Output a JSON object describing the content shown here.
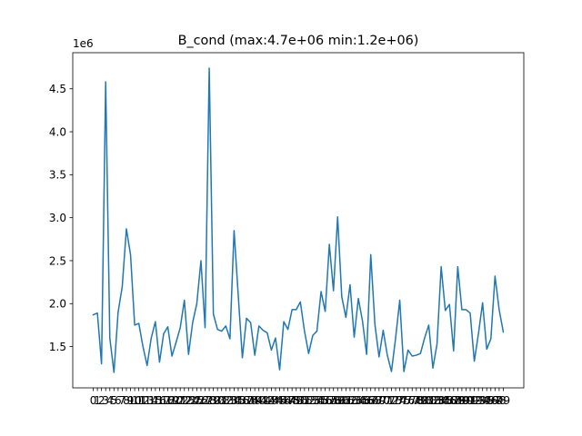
{
  "chart_data": {
    "type": "line",
    "title": "B_cond (max:4.7e+06 min:1.2e+06)",
    "xlabel": "",
    "ylabel": "",
    "y_offset_label": "1e6",
    "grid": false,
    "legend": "none",
    "xlim": [
      -4.95,
      103.95
    ],
    "ylim": [
      1.02,
      4.92
    ],
    "x_ticks": [
      0,
      1,
      2,
      3,
      4,
      5,
      6,
      7,
      8,
      9,
      10,
      11,
      12,
      13,
      14,
      15,
      16,
      17,
      18,
      19,
      20,
      21,
      22,
      23,
      24,
      25,
      26,
      27,
      28,
      29,
      30,
      31,
      32,
      33,
      34,
      35,
      36,
      37,
      38,
      39,
      40,
      41,
      42,
      43,
      44,
      45,
      46,
      47,
      48,
      49,
      50,
      51,
      52,
      53,
      54,
      55,
      56,
      57,
      58,
      59,
      60,
      61,
      62,
      63,
      64,
      65,
      66,
      67,
      68,
      69,
      70,
      71,
      72,
      73,
      74,
      75,
      76,
      77,
      78,
      79,
      80,
      81,
      82,
      83,
      84,
      85,
      86,
      87,
      88,
      89,
      90,
      91,
      92,
      93,
      94,
      95,
      96,
      97,
      98,
      99
    ],
    "y_ticks": [
      1.5,
      2.0,
      2.5,
      3.0,
      3.5,
      4.0,
      4.5
    ],
    "y_tick_labels": [
      "1.5",
      "2.0",
      "2.5",
      "3.0",
      "3.5",
      "4.0",
      "4.5"
    ],
    "series": [
      {
        "color": "#1f77b4",
        "x": [
          0,
          1,
          2,
          3,
          4,
          5,
          6,
          7,
          8,
          9,
          10,
          11,
          12,
          13,
          14,
          15,
          16,
          17,
          18,
          19,
          20,
          21,
          22,
          23,
          24,
          25,
          26,
          27,
          28,
          29,
          30,
          31,
          32,
          33,
          34,
          35,
          36,
          37,
          38,
          39,
          40,
          41,
          42,
          43,
          44,
          45,
          46,
          47,
          48,
          49,
          50,
          51,
          52,
          53,
          54,
          55,
          56,
          57,
          58,
          59,
          60,
          61,
          62,
          63,
          64,
          65,
          66,
          67,
          68,
          69,
          70,
          71,
          72,
          73,
          74,
          75,
          76,
          77,
          78,
          79,
          80,
          81,
          82,
          83,
          84,
          85,
          86,
          87,
          88,
          89,
          90,
          91,
          92,
          93,
          94,
          95,
          96,
          97,
          98,
          99
        ],
        "values": [
          1.87,
          1.89,
          1.3,
          4.58,
          1.6,
          1.2,
          1.9,
          2.2,
          2.87,
          2.57,
          1.75,
          1.77,
          1.5,
          1.28,
          1.6,
          1.79,
          1.32,
          1.65,
          1.73,
          1.39,
          1.55,
          1.72,
          2.04,
          1.41,
          1.78,
          2.0,
          2.5,
          1.72,
          4.74,
          1.88,
          1.7,
          1.68,
          1.74,
          1.59,
          2.85,
          2.1,
          1.37,
          1.83,
          1.78,
          1.4,
          1.74,
          1.69,
          1.66,
          1.46,
          1.6,
          1.23,
          1.79,
          1.7,
          1.93,
          1.93,
          2.02,
          1.68,
          1.42,
          1.63,
          1.68,
          2.14,
          1.91,
          2.69,
          2.15,
          3.01,
          2.08,
          1.84,
          2.22,
          1.61,
          2.06,
          1.8,
          1.41,
          2.57,
          1.76,
          1.38,
          1.69,
          1.4,
          1.21,
          1.6,
          2.04,
          1.21,
          1.46,
          1.39,
          1.4,
          1.42,
          1.6,
          1.75,
          1.25,
          1.53,
          2.43,
          1.92,
          1.99,
          1.45,
          2.43,
          1.93,
          1.93,
          1.89,
          1.33,
          1.65,
          2.01,
          1.47,
          1.59,
          2.32,
          1.93,
          1.67
        ]
      }
    ]
  }
}
